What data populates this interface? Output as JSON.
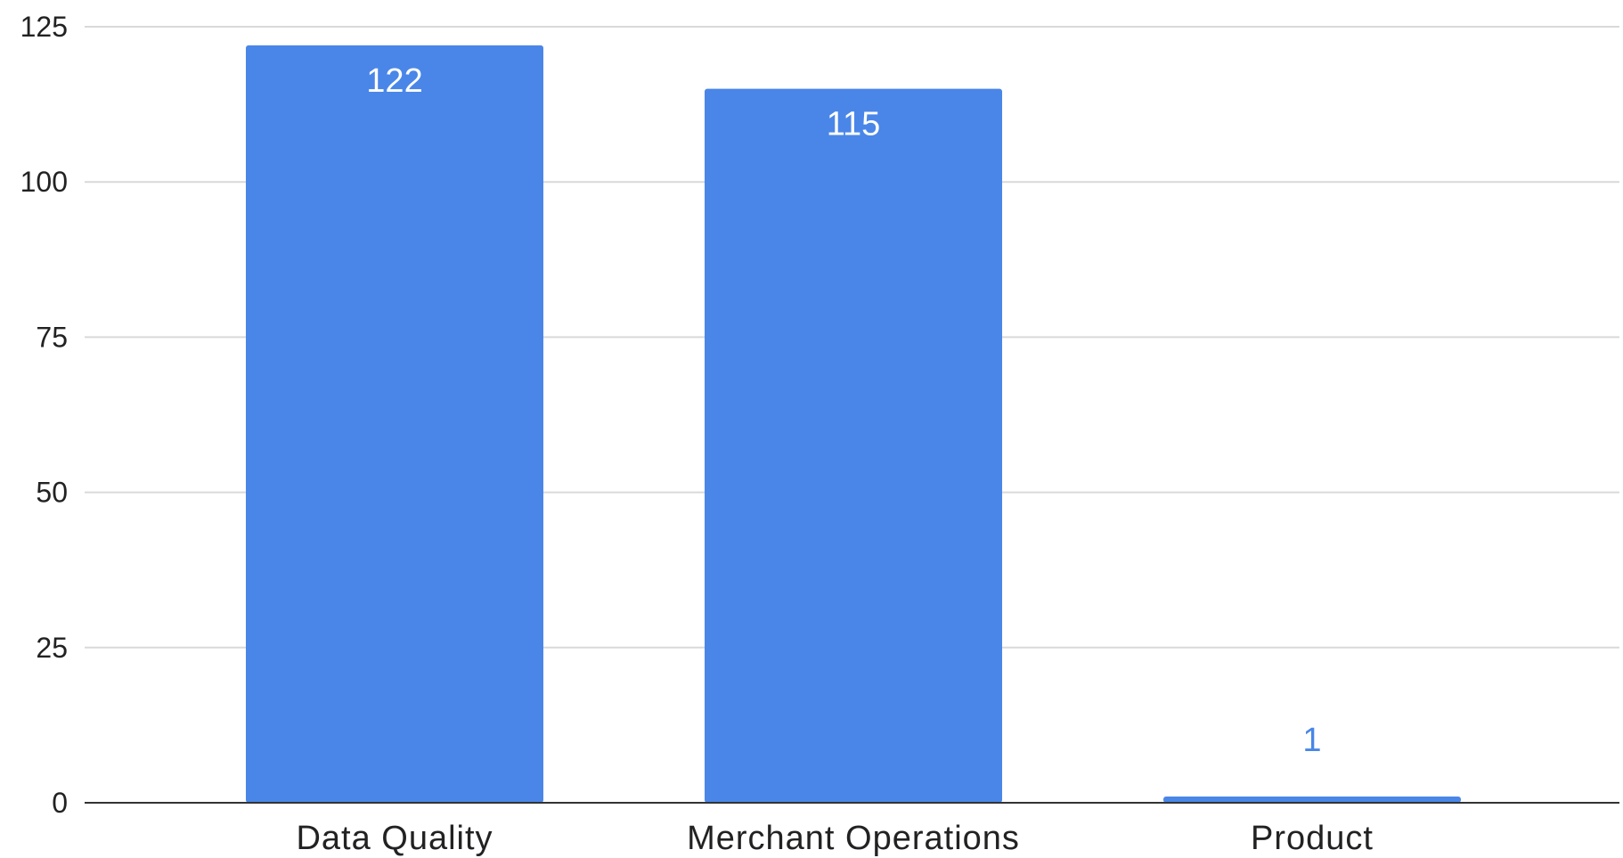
{
  "chart_data": {
    "type": "bar",
    "categories": [
      "Data Quality",
      "Merchant Operations",
      "Product"
    ],
    "values": [
      122,
      115,
      1
    ],
    "data_labels": [
      "122",
      "115",
      "1"
    ],
    "title": "",
    "xlabel": "",
    "ylabel": "",
    "ylim": [
      0,
      125
    ],
    "yticks": [
      0,
      25,
      50,
      75,
      100,
      125
    ],
    "ytick_labels": [
      "0",
      "25",
      "50",
      "75",
      "100",
      "125"
    ],
    "grid": true,
    "legend": "none",
    "colors": {
      "bar": "#4a86e8",
      "label_inside": "#ffffff",
      "label_outside": "#4a86e8",
      "grid": "#d9d9d9",
      "axis": "#333333",
      "text": "#222222"
    }
  }
}
